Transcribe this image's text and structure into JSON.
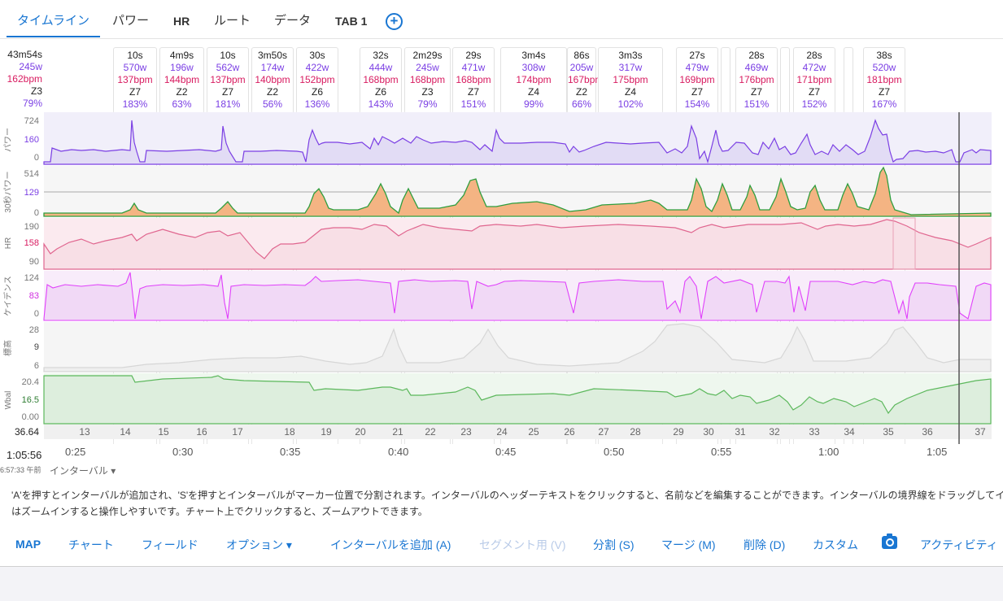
{
  "tabs": [
    {
      "label": "タイムライン",
      "active": true
    },
    {
      "label": "パワー"
    },
    {
      "label": "HR"
    },
    {
      "label": "ルート"
    },
    {
      "label": "データ"
    },
    {
      "label": "TAB 1"
    }
  ],
  "summary": {
    "duration": "43m54s",
    "power": "245w",
    "hr": "162bpm",
    "zone": "Z3",
    "pct": "79%"
  },
  "intervals": [
    {
      "duration": "10s",
      "power": "570w",
      "hr": "137bpm",
      "zone": "Z7",
      "pct": "183%"
    },
    {
      "duration": "4m9s",
      "power": "196w",
      "hr": "144bpm",
      "zone": "Z2",
      "pct": "63%"
    },
    {
      "duration": "10s",
      "power": "562w",
      "hr": "137bpm",
      "zone": "Z7",
      "pct": "181%"
    },
    {
      "duration": "3m50s",
      "power": "174w",
      "hr": "140bpm",
      "zone": "Z2",
      "pct": "56%"
    },
    {
      "duration": "30s",
      "power": "422w",
      "hr": "152bpm",
      "zone": "Z6",
      "pct": "136%"
    },
    {
      "duration": "32s",
      "power": "444w",
      "hr": "168bpm",
      "zone": "Z6",
      "pct": "143%"
    },
    {
      "duration": "2m29s",
      "power": "245w",
      "hr": "168bpm",
      "zone": "Z3",
      "pct": "79%"
    },
    {
      "duration": "29s",
      "power": "471w",
      "hr": "168bpm",
      "zone": "Z7",
      "pct": "151%"
    },
    {
      "duration": "3m4s",
      "power": "308w",
      "hr": "174bpm",
      "zone": "Z4",
      "pct": "99%"
    },
    {
      "duration": "86s",
      "power": "205w",
      "hr": "167bpm",
      "zone": "Z2",
      "pct": "66%"
    },
    {
      "duration": "3m3s",
      "power": "317w",
      "hr": "175bpm",
      "zone": "Z4",
      "pct": "102%"
    },
    {
      "duration": "27s",
      "power": "479w",
      "hr": "169bpm",
      "zone": "Z7",
      "pct": "154%"
    },
    {
      "duration": "28s",
      "power": "469w",
      "hr": "176bpm",
      "zone": "Z7",
      "pct": "151%"
    },
    {
      "duration": "28s",
      "power": "472w",
      "hr": "171bpm",
      "zone": "Z7",
      "pct": "152%"
    },
    {
      "duration": "38s",
      "power": "520w",
      "hr": "181bpm",
      "zone": "Z7",
      "pct": "167%"
    }
  ],
  "rows": {
    "power": {
      "label": "パワー",
      "ticks": [
        "724",
        "160",
        "0"
      ]
    },
    "power30": {
      "label": "30秒パワー",
      "ticks": [
        "514",
        "129",
        "0"
      ]
    },
    "hr": {
      "label": "HR",
      "ticks": [
        "190",
        "158",
        "90"
      ]
    },
    "cadence": {
      "label": "ケイデンス",
      "ticks": [
        "124",
        "83",
        "0"
      ]
    },
    "altitude": {
      "label": "標高",
      "ticks": [
        "28",
        "9",
        "6"
      ]
    },
    "wbal": {
      "label": "Wbal",
      "ticks": [
        "20.4",
        "16.5",
        "0.00"
      ]
    }
  },
  "distance": {
    "first": "36.64",
    "marks": [
      "13",
      "14",
      "15",
      "16",
      "17",
      "18",
      "19",
      "20",
      "21",
      "22",
      "23",
      "24",
      "25",
      "26",
      "27",
      "28",
      "29",
      "30",
      "31",
      "32",
      "33",
      "34",
      "35",
      "36",
      "37"
    ]
  },
  "time_axis": {
    "current": "1:05:56",
    "clock": "6:57:33 午前",
    "labels": [
      "0:25",
      "0:30",
      "0:35",
      "0:40",
      "0:45",
      "0:50",
      "0:55",
      "1:00",
      "1:05"
    ]
  },
  "interval_select": "インターバル",
  "help_text": [
    "'A'を押すとインターバルが追加され、'S'を押すとインターバルがマーカー位置で分割されます。インターバルのヘッダーテキストをクリックすると、名前などを編集することができます。インターバルの境界線をドラッグしてイ",
    "はズームインすると操作しやすいです。チャート上でクリックすると、ズームアウトできます。"
  ],
  "buttons": {
    "map": "MAP",
    "chart": "チャート",
    "fields": "フィールド",
    "options": "オプション",
    "add_interval": "インターバルを追加 (A)",
    "segment": "セグメント用 (V)",
    "split": "分割 (S)",
    "merge": "マージ (M)",
    "delete": "削除 (D)",
    "custom": "カスタム",
    "activity": "アクティビティ"
  },
  "colors": {
    "accent": "#1976d2",
    "power": "#7b3fe4",
    "hr": "#d81b60",
    "cadence": "#e040fb",
    "wbal": "#43a047"
  }
}
